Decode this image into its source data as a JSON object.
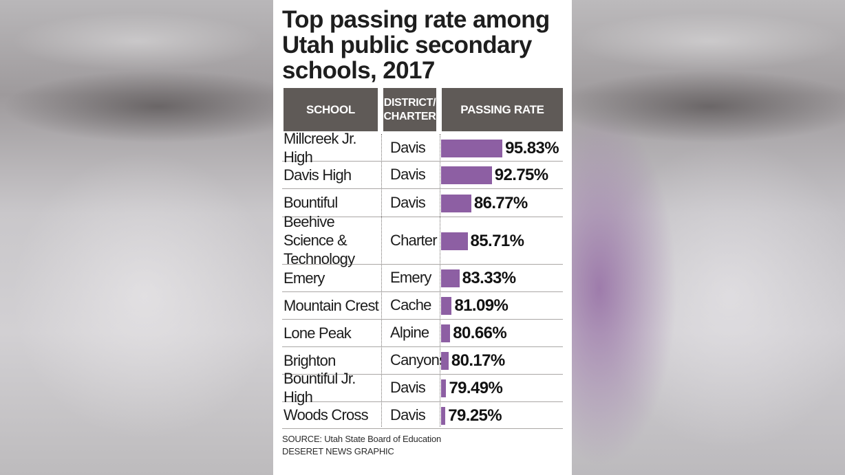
{
  "colors": {
    "bar": "#8d5fa3",
    "header": "#5f5a57"
  },
  "chart_data": {
    "type": "bar",
    "orientation": "horizontal",
    "title": "Top passing rate among Utah public secondary schools, 2017",
    "columns": {
      "school": "SCHOOL",
      "district_line1": "DISTRICT/",
      "district_line2": "CHARTER",
      "rate": "PASSING RATE"
    },
    "value_suffix": "%",
    "rows": [
      {
        "school": "Millcreek Jr. High",
        "district": "Davis",
        "value": 95.83,
        "label": "95.83%"
      },
      {
        "school": "Davis High",
        "district": "Davis",
        "value": 92.75,
        "label": "92.75%"
      },
      {
        "school": "Bountiful",
        "district": "Davis",
        "value": 86.77,
        "label": "86.77%"
      },
      {
        "school": "Beehive Science & Technology",
        "district": "Charter",
        "value": 85.71,
        "label": "85.71%"
      },
      {
        "school": "Emery",
        "district": "Emery",
        "value": 83.33,
        "label": "83.33%"
      },
      {
        "school": "Mountain Crest",
        "district": "Cache",
        "value": 81.09,
        "label": "81.09%"
      },
      {
        "school": "Lone Peak",
        "district": "Alpine",
        "value": 80.66,
        "label": "80.66%"
      },
      {
        "school": "Brighton",
        "district": "Canyons",
        "value": 80.17,
        "label": "80.17%"
      },
      {
        "school": "Bountiful Jr. High",
        "district": "Davis",
        "value": 79.49,
        "label": "79.49%"
      },
      {
        "school": "Woods Cross",
        "district": "Davis",
        "value": 79.25,
        "label": "79.25%"
      }
    ],
    "source": "SOURCE: Utah State Board of Education",
    "credit": "DESERET NEWS GRAPHIC"
  }
}
